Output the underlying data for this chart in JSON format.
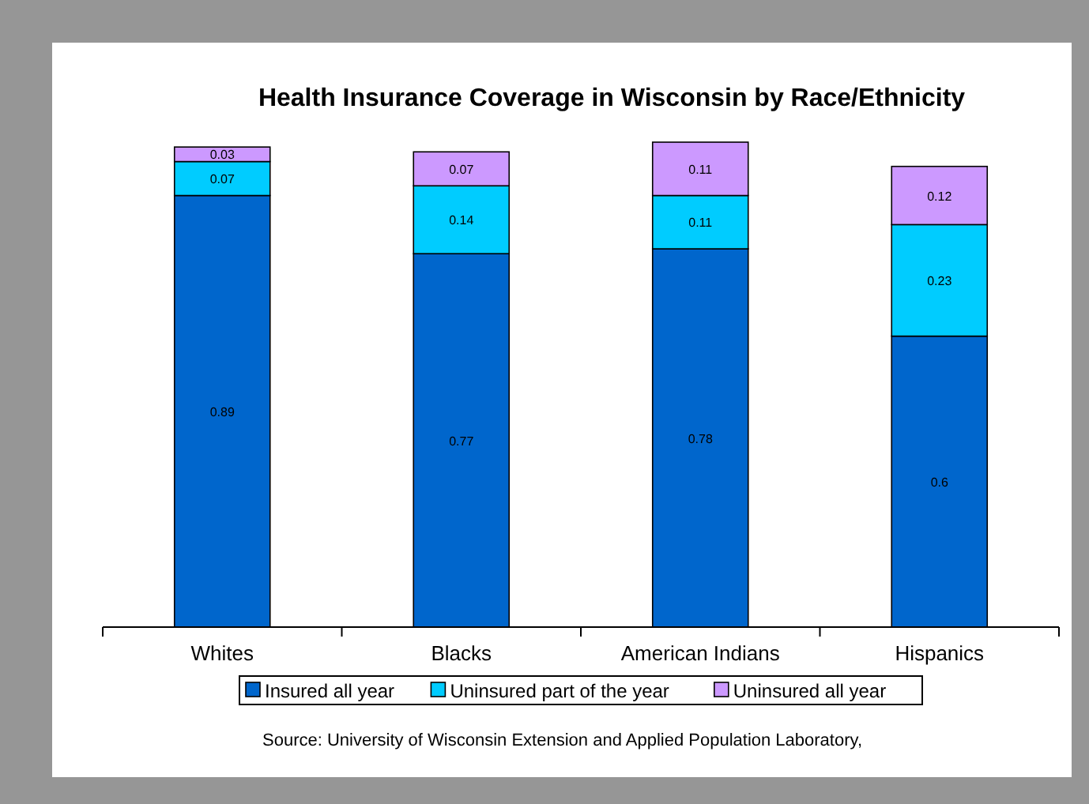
{
  "chart_data": {
    "type": "bar",
    "title": "Health Insurance Coverage in Wisconsin by Race/Ethnicity",
    "categories": [
      "Whites",
      "Blacks",
      "American Indians",
      "Hispanics"
    ],
    "stacked": true,
    "data_labels": true,
    "legend": "bottom",
    "series": [
      {
        "name": "Insured all year",
        "color": "#0066cc",
        "values": [
          0.89,
          0.77,
          0.78,
          0.6
        ]
      },
      {
        "name": "Uninsured part of the year",
        "color": "#00ccff",
        "values": [
          0.07,
          0.14,
          0.11,
          0.23
        ]
      },
      {
        "name": "Uninsured all year",
        "color": "#cc99ff",
        "values": [
          0.03,
          0.07,
          0.11,
          0.12
        ]
      }
    ],
    "annotations": [
      "Source: University of Wisconsin Extension and Applied Population Laboratory,"
    ]
  }
}
